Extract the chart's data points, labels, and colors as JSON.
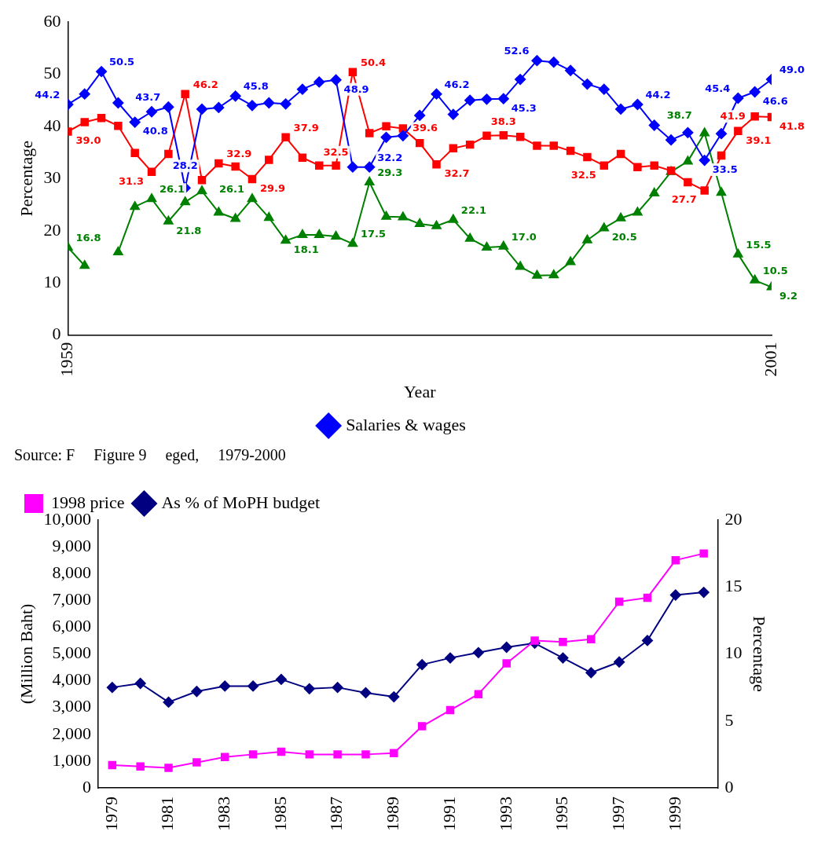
{
  "chart_data": [
    {
      "type": "line",
      "xlabel": "Year",
      "ylabel": "Percentage",
      "x": [
        1959,
        1960,
        1961,
        1962,
        1963,
        1964,
        1965,
        1966,
        1967,
        1968,
        1969,
        1970,
        1971,
        1972,
        1973,
        1974,
        1975,
        1976,
        1977,
        1978,
        1979,
        1980,
        1981,
        1982,
        1983,
        1984,
        1985,
        1986,
        1987,
        1988,
        1989,
        1990,
        1991,
        1992,
        1993,
        1994,
        1995,
        1996,
        1997,
        1998,
        1999,
        2000,
        2001
      ],
      "xlim": [
        1959,
        2001
      ],
      "xticks": [
        1959,
        2001
      ],
      "ylim": [
        0,
        60
      ],
      "yticks": [
        0,
        10,
        20,
        30,
        40,
        50,
        60
      ],
      "grid": false,
      "legend": "bottom",
      "line_style": "solid",
      "series": [
        {
          "name": "Salaries & wages",
          "color": "#0000ff",
          "marker": "diamond",
          "values": [
            44.2,
            46.2,
            50.5,
            44.5,
            40.8,
            42.8,
            43.7,
            28.2,
            43.3,
            43.6,
            45.8,
            44.0,
            44.5,
            44.3,
            47.1,
            48.5,
            48.9,
            32.2,
            32.2,
            37.9,
            38.2,
            42.1,
            46.2,
            42.3,
            45.0,
            45.2,
            45.3,
            49.0,
            52.6,
            52.3,
            50.7,
            48.1,
            47.1,
            43.3,
            44.2,
            40.2,
            37.4,
            38.8,
            33.5,
            38.6,
            45.4,
            46.6,
            49.0
          ],
          "value_labels": [
            "44.2",
            null,
            "50.5",
            null,
            "40.8",
            null,
            "43.7",
            "28.2",
            null,
            null,
            "45.8",
            null,
            null,
            null,
            null,
            null,
            "48.9",
            null,
            "32.2",
            null,
            null,
            null,
            "46.2",
            null,
            null,
            null,
            "45.3",
            null,
            "52.6",
            null,
            null,
            null,
            null,
            null,
            "44.2",
            null,
            null,
            null,
            "33.5",
            null,
            "45.4",
            "46.6",
            "49.0"
          ]
        },
        {
          "color": "#ff0000",
          "marker": "square",
          "values": [
            39.0,
            40.8,
            41.6,
            40.1,
            34.9,
            31.3,
            34.7,
            46.2,
            29.7,
            32.9,
            32.3,
            29.9,
            33.6,
            37.9,
            34.0,
            32.5,
            32.5,
            50.4,
            38.7,
            40.0,
            39.6,
            36.8,
            32.7,
            35.8,
            36.5,
            38.2,
            38.3,
            38.0,
            36.3,
            36.3,
            35.3,
            34.1,
            32.5,
            34.7,
            32.2,
            32.5,
            31.5,
            29.3,
            27.7,
            34.4,
            39.1,
            41.9,
            41.8
          ],
          "value_labels": [
            "39.0",
            null,
            null,
            null,
            null,
            "31.3",
            null,
            "46.2",
            null,
            "32.9",
            null,
            "29.9",
            null,
            "37.9",
            null,
            null,
            "32.5",
            "50.4",
            null,
            null,
            "39.6",
            null,
            "32.7",
            null,
            null,
            null,
            "38.3",
            null,
            null,
            null,
            null,
            null,
            "32.5",
            null,
            null,
            null,
            null,
            null,
            "27.7",
            null,
            "39.1",
            "41.9",
            "41.8"
          ]
        },
        {
          "color": "#008000",
          "marker": "triangle",
          "values": [
            16.8,
            13.3,
            null,
            15.9,
            24.6,
            26.1,
            21.8,
            25.5,
            27.6,
            23.5,
            22.3,
            26.1,
            22.5,
            18.1,
            19.2,
            19.2,
            18.9,
            17.5,
            29.3,
            22.7,
            22.6,
            21.3,
            20.9,
            22.1,
            18.5,
            16.8,
            17.0,
            13.1,
            11.4,
            11.5,
            14.0,
            18.2,
            20.5,
            22.4,
            23.5,
            27.2,
            31.3,
            33.3,
            38.7,
            27.3,
            15.5,
            10.5,
            9.2
          ],
          "value_labels": [
            "16.8",
            null,
            null,
            null,
            null,
            "26.1",
            "21.8",
            null,
            null,
            null,
            null,
            "26.1",
            null,
            "18.1",
            null,
            null,
            null,
            "17.5",
            "29.3",
            null,
            null,
            null,
            null,
            "22.1",
            null,
            null,
            "17.0",
            null,
            null,
            null,
            null,
            null,
            "20.5",
            null,
            null,
            null,
            null,
            null,
            "38.7",
            null,
            "15.5",
            "10.5",
            "9.2"
          ]
        }
      ]
    },
    {
      "type": "line",
      "ylabel": "(Million Baht)",
      "y2label": "Percentage",
      "categories": [
        "1979",
        null,
        "1981",
        null,
        "1983",
        null,
        "1985",
        null,
        "1987",
        null,
        "1989",
        null,
        "1991",
        null,
        "1993",
        null,
        "1995",
        null,
        "1997",
        null,
        "1999",
        null
      ],
      "ylim": [
        0,
        10000
      ],
      "yticks": [
        0,
        {
          "value": 1000,
          "label": "1,000"
        },
        {
          "value": 2000,
          "label": "2,000"
        },
        {
          "value": 3000,
          "label": "3,000"
        },
        {
          "value": 4000,
          "label": "4,000"
        },
        {
          "value": 5000,
          "label": "5,000"
        },
        {
          "value": 6000,
          "label": "6,000"
        },
        {
          "value": 7000,
          "label": "7,000"
        },
        {
          "value": 8000,
          "label": "8,000"
        },
        {
          "value": 9000,
          "label": "9,000"
        },
        {
          "value": 10000,
          "label": "10,000"
        }
      ],
      "y2lim": [
        0,
        20
      ],
      "y2ticks": [
        0,
        5,
        10,
        15,
        20
      ],
      "grid": false,
      "legend": "top left",
      "line_style": "solid",
      "annotations": [
        "Source: F",
        "Figure 9",
        "eged,",
        "1979-2000"
      ],
      "series": [
        {
          "name": "1998 price",
          "color": "#ff00ff",
          "marker": "square",
          "values": [
            850,
            800,
            750,
            950,
            1150,
            1250,
            1350,
            1250,
            1250,
            1250,
            1300,
            2300,
            2900,
            3500,
            4650,
            5500,
            5450,
            5550,
            6950,
            7100,
            8500,
            8750
          ]
        },
        {
          "name": "As % of MoPH budget",
          "color": "#000080",
          "marker": "diamond",
          "axis": "y2",
          "values": [
            7.5,
            7.8,
            6.4,
            7.2,
            7.6,
            7.6,
            8.1,
            7.4,
            7.5,
            7.1,
            6.8,
            9.2,
            9.7,
            10.1,
            10.5,
            10.8,
            9.7,
            8.6,
            9.4,
            11.0,
            14.4,
            14.6
          ]
        }
      ]
    }
  ]
}
